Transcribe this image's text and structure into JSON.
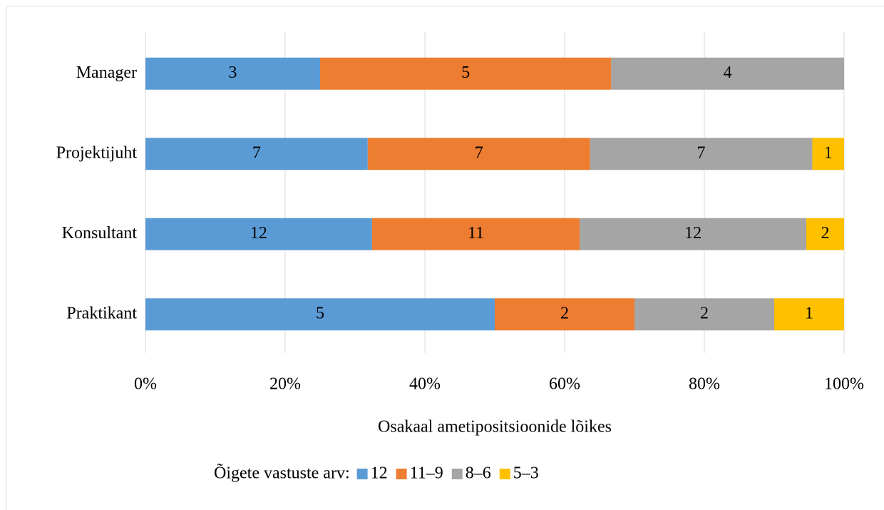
{
  "chart_data": {
    "type": "bar",
    "orientation": "horizontal",
    "stacking": "percent",
    "categories": [
      "Manager",
      "Projektijuht",
      "Konsultant",
      "Praktikant"
    ],
    "series": [
      {
        "name": "12",
        "color": "#5b9bd5",
        "values": [
          3,
          7,
          12,
          5
        ]
      },
      {
        "name": "11–9",
        "color": "#ed7d31",
        "values": [
          5,
          7,
          11,
          2
        ]
      },
      {
        "name": "8–6",
        "color": "#a5a5a5",
        "values": [
          4,
          7,
          12,
          2
        ]
      },
      {
        "name": "5–3",
        "color": "#ffc000",
        "values": [
          null,
          1,
          2,
          1
        ]
      }
    ],
    "xlim": [
      0,
      100
    ],
    "xticks": [
      {
        "value": 0,
        "label": "0%"
      },
      {
        "value": 20,
        "label": "20%"
      },
      {
        "value": 40,
        "label": "40%"
      },
      {
        "value": 60,
        "label": "60%"
      },
      {
        "value": 80,
        "label": "80%"
      },
      {
        "value": 100,
        "label": "100%"
      }
    ],
    "xlabel": "Osakaal ametipositsioonide lõikes",
    "legend_title": "Õigete vastuste arv:",
    "legend": "bottom",
    "grid": true
  }
}
